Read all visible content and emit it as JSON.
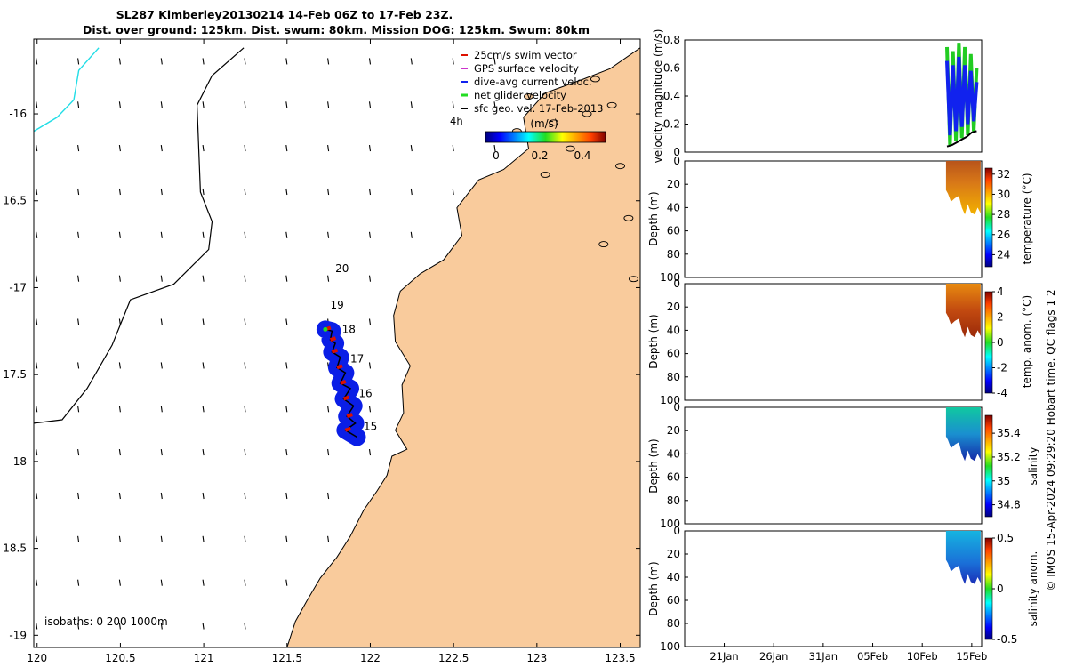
{
  "title": {
    "line1": "SL287 Kimberley20130214 14-Feb 06Z to 17-Feb 23Z.",
    "line2": "Dist. over ground: 125km. Dist. swum: 80km. Mission DOG: 125km. Swum: 80km"
  },
  "credit": "© IMOS 15-Apr-2024 09:29:20 Hobart time. QC flags 1  2",
  "colors": {
    "land": "#f9cb9c",
    "track_fill": "#0a1ee6",
    "swim": "#dd1100",
    "coast": "#000000",
    "isobath_cyan": "#22dde6"
  },
  "chart_data": [
    {
      "type": "map",
      "name": "track_map",
      "xlim": [
        119.98,
        123.62
      ],
      "ylim": [
        -19.07,
        -15.57
      ],
      "x_ticks": [
        120,
        120.5,
        121,
        121.5,
        122,
        122.5,
        123,
        123.5
      ],
      "x_tick_labels": [
        "120",
        "120.5",
        "121",
        "121.5",
        "122",
        "122.5",
        "123",
        "123.5"
      ],
      "y_ticks": [
        -16,
        -16.5,
        -17,
        -17.5,
        -18,
        -18.5,
        -19
      ],
      "y_tick_labels": [
        "-16",
        "16.5",
        "-17",
        "17.5",
        "-18",
        "18.5",
        "-19"
      ],
      "legend": [
        {
          "label": "25cm/s swim vector",
          "color": "#dd1100"
        },
        {
          "label": "GPS surface velocity",
          "color": "#cc33cc"
        },
        {
          "label": "dive-avg current veloc.",
          "color": "#1122ee"
        },
        {
          "label": "net glider velocity",
          "color": "#22dd22"
        },
        {
          "label": "sfc geo. vel. 17-Feb-2013",
          "color": "#000000"
        }
      ],
      "legend_note": "4h",
      "colorbar": {
        "label": "(m/s)",
        "ticks": [
          0,
          0.2,
          0.4
        ],
        "tick_labels": [
          "0",
          "0.2",
          "0.4"
        ],
        "range": [
          0,
          0.5
        ]
      },
      "day_labels": [
        {
          "text": "20",
          "lon": 121.79,
          "lat": -16.91
        },
        {
          "text": "19",
          "lon": 121.76,
          "lat": -17.12
        },
        {
          "text": "18",
          "lon": 121.83,
          "lat": -17.26
        },
        {
          "text": "17",
          "lon": 121.88,
          "lat": -17.43
        },
        {
          "text": "16",
          "lon": 121.93,
          "lat": -17.63
        },
        {
          "text": "15",
          "lon": 121.96,
          "lat": -17.82
        }
      ],
      "track": [
        [
          121.73,
          -17.24
        ],
        [
          121.77,
          -17.25
        ],
        [
          121.76,
          -17.3
        ],
        [
          121.79,
          -17.32
        ],
        [
          121.77,
          -17.37
        ],
        [
          121.82,
          -17.4
        ],
        [
          121.8,
          -17.46
        ],
        [
          121.85,
          -17.49
        ],
        [
          121.82,
          -17.55
        ],
        [
          121.88,
          -17.58
        ],
        [
          121.84,
          -17.64
        ],
        [
          121.9,
          -17.68
        ],
        [
          121.86,
          -17.74
        ],
        [
          121.91,
          -17.78
        ],
        [
          121.85,
          -17.82
        ],
        [
          121.92,
          -17.86
        ]
      ],
      "isobaths_text": "isobaths: 0   200  1000m",
      "isobath_200": [
        [
          121.24,
          -15.62
        ],
        [
          121.05,
          -15.78
        ],
        [
          120.96,
          -15.95
        ],
        [
          120.97,
          -16.2
        ],
        [
          120.98,
          -16.45
        ],
        [
          121.05,
          -16.62
        ],
        [
          121.03,
          -16.78
        ],
        [
          120.82,
          -16.98
        ],
        [
          120.56,
          -17.07
        ],
        [
          120.45,
          -17.33
        ],
        [
          120.3,
          -17.58
        ],
        [
          120.15,
          -17.76
        ],
        [
          119.98,
          -17.78
        ]
      ],
      "isobath_1000": [
        [
          120.37,
          -15.62
        ],
        [
          120.25,
          -15.75
        ],
        [
          120.22,
          -15.92
        ],
        [
          120.12,
          -16.02
        ],
        [
          119.98,
          -16.1
        ]
      ],
      "coastline": [
        [
          123.62,
          -15.62
        ],
        [
          123.44,
          -15.74
        ],
        [
          123.28,
          -15.8
        ],
        [
          123.05,
          -15.88
        ],
        [
          122.92,
          -16.02
        ],
        [
          122.95,
          -16.2
        ],
        [
          122.8,
          -16.32
        ],
        [
          122.65,
          -16.38
        ],
        [
          122.52,
          -16.54
        ],
        [
          122.55,
          -16.7
        ],
        [
          122.44,
          -16.84
        ],
        [
          122.3,
          -16.92
        ],
        [
          122.18,
          -17.02
        ],
        [
          122.14,
          -17.16
        ],
        [
          122.15,
          -17.31
        ],
        [
          122.24,
          -17.45
        ],
        [
          122.19,
          -17.56
        ],
        [
          122.2,
          -17.72
        ],
        [
          122.15,
          -17.82
        ],
        [
          122.22,
          -17.93
        ],
        [
          122.13,
          -17.97
        ],
        [
          122.1,
          -18.08
        ],
        [
          122.04,
          -18.17
        ],
        [
          121.96,
          -18.28
        ],
        [
          121.88,
          -18.43
        ],
        [
          121.8,
          -18.55
        ],
        [
          121.7,
          -18.67
        ],
        [
          121.62,
          -18.8
        ],
        [
          121.55,
          -18.92
        ],
        [
          121.5,
          -19.07
        ]
      ]
    },
    {
      "type": "line",
      "name": "velocity_magnitude",
      "ylabel": "velocity magnitude (m/s)",
      "ylim": [
        0,
        0.8
      ],
      "y_ticks": [
        0,
        0.2,
        0.4,
        0.6,
        0.8
      ],
      "y_tick_labels": [
        "0",
        "0.2",
        "0.4",
        "0.6",
        "0.8"
      ],
      "x_range_days": [
        0,
        30
      ],
      "series": [
        {
          "name": "net glider velocity",
          "color": "#22cc22",
          "x": [
            26.5,
            26.8,
            27.1,
            27.4,
            27.7,
            28.0,
            28.3,
            28.6,
            28.9,
            29.2,
            29.5
          ],
          "y": [
            0.75,
            0.05,
            0.72,
            0.08,
            0.78,
            0.1,
            0.75,
            0.12,
            0.7,
            0.15,
            0.6
          ]
        },
        {
          "name": "dive-avg current veloc.",
          "color": "#1122ee",
          "x": [
            26.5,
            26.8,
            27.1,
            27.4,
            27.7,
            28.0,
            28.3,
            28.6,
            28.9,
            29.2,
            29.5
          ],
          "y": [
            0.65,
            0.12,
            0.62,
            0.15,
            0.68,
            0.18,
            0.62,
            0.2,
            0.58,
            0.22,
            0.5
          ]
        },
        {
          "name": "sfc geo. vel.",
          "color": "#000000",
          "x": [
            26.5,
            27.0,
            27.5,
            28.0,
            28.5,
            29.0,
            29.5
          ],
          "y": [
            0.04,
            0.05,
            0.07,
            0.09,
            0.11,
            0.14,
            0.15
          ]
        }
      ]
    },
    {
      "type": "heatmap",
      "name": "temperature",
      "ylabel": "Depth (m)",
      "ylim": [
        0,
        100
      ],
      "y_ticks": [
        0,
        20,
        40,
        60,
        80,
        100
      ],
      "colorbar_label": "temperature (°C)",
      "colorbar_ticks": [
        32,
        30,
        28,
        26,
        24
      ],
      "colorbar_range": [
        22.8,
        32.6
      ],
      "data_x_range_days": [
        26.4,
        29.9
      ]
    },
    {
      "type": "heatmap",
      "name": "temp_anomaly",
      "ylabel": "Depth (m)",
      "ylim": [
        0,
        100
      ],
      "y_ticks": [
        0,
        20,
        40,
        60,
        80,
        100
      ],
      "colorbar_label": "temp. anom. (°C)",
      "colorbar_ticks": [
        4,
        2,
        0,
        -2,
        -4
      ],
      "colorbar_range": [
        -4,
        4
      ],
      "data_x_range_days": [
        26.4,
        29.9
      ]
    },
    {
      "type": "heatmap",
      "name": "salinity",
      "ylabel": "Depth (m)",
      "ylim": [
        0,
        100
      ],
      "y_ticks": [
        0,
        20,
        40,
        60,
        80,
        100
      ],
      "colorbar_label": "salinity",
      "colorbar_ticks": [
        35.4,
        35.2,
        35,
        34.8
      ],
      "colorbar_range": [
        34.7,
        35.55
      ],
      "data_x_range_days": [
        26.4,
        29.9
      ]
    },
    {
      "type": "heatmap",
      "name": "salinity_anomaly",
      "ylabel": "Depth (m)",
      "ylim": [
        0,
        100
      ],
      "y_ticks": [
        0,
        20,
        40,
        60,
        80,
        100
      ],
      "colorbar_label": "salinity anom.",
      "colorbar_ticks": [
        0.5,
        0,
        -0.5
      ],
      "colorbar_range": [
        -0.5,
        0.5
      ],
      "data_x_range_days": [
        26.4,
        29.9
      ],
      "x_ticks_days": [
        4,
        9,
        14,
        19,
        24,
        29
      ],
      "x_tick_labels": [
        "21Jan",
        "26Jan",
        "31Jan",
        "05Feb",
        "10Feb",
        "15Feb"
      ]
    }
  ]
}
